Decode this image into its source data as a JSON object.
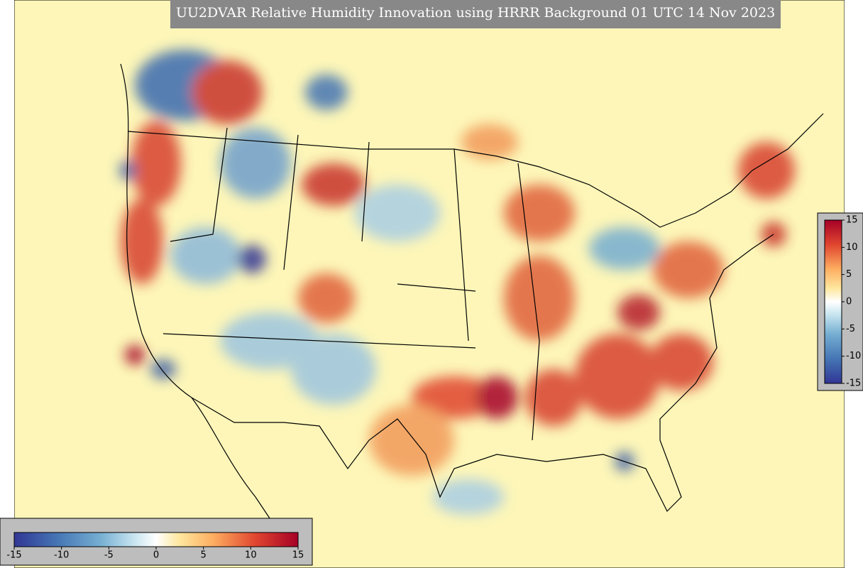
{
  "title": "UU2DVAR Relative Humidity Innovation using HRRR Background 01 UTC 14 Nov 2023",
  "colorbar": {
    "range": [
      -15,
      15
    ],
    "ticks": [
      -15,
      -10,
      -5,
      0,
      5,
      10,
      15
    ]
  }
}
